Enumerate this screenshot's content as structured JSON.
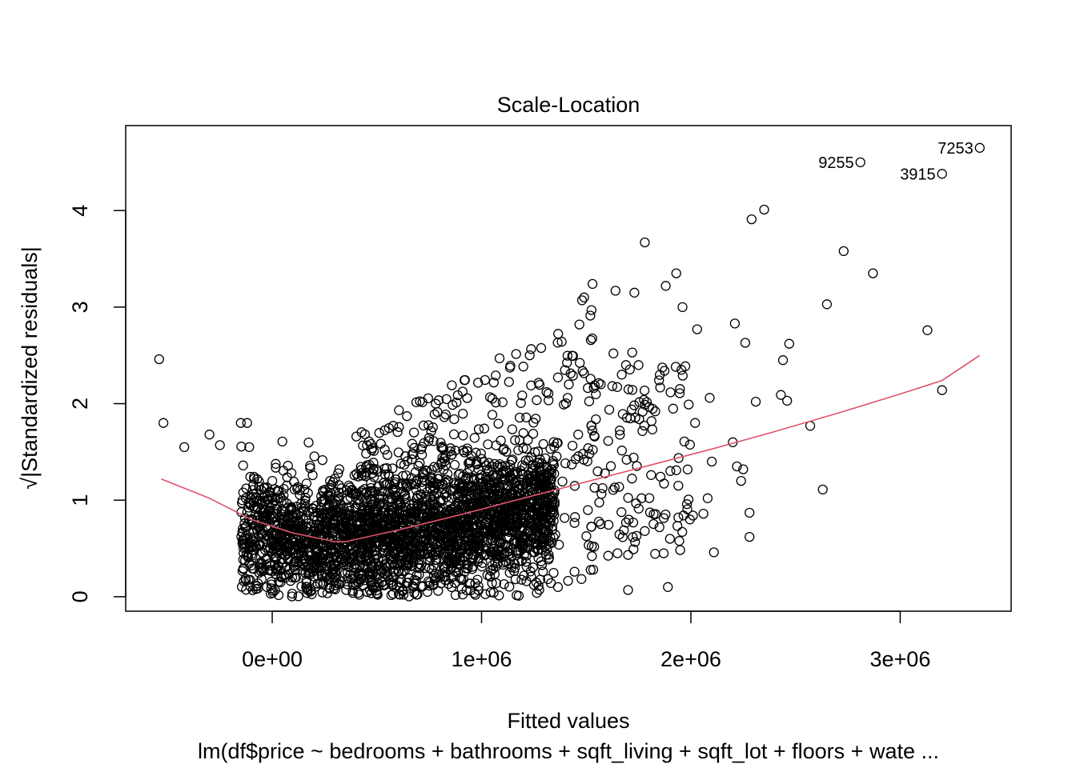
{
  "chart_data": {
    "type": "scatter",
    "title": "Scale-Location",
    "xlabel": "Fitted values",
    "ylabel": "√|Standardized residuals|",
    "subtitle": "lm(df$price ~ bedrooms + bathrooms + sqft_living + sqft_lot + floors + wate ...",
    "xlim": [
      -700000,
      3530000
    ],
    "ylim": [
      -0.15,
      4.88
    ],
    "x_ticks": [
      {
        "value": 0,
        "label": "0e+00"
      },
      {
        "value": 1000000,
        "label": "1e+06"
      },
      {
        "value": 2000000,
        "label": "2e+06"
      },
      {
        "value": 3000000,
        "label": "3e+06"
      }
    ],
    "y_ticks": [
      {
        "value": 0,
        "label": "0"
      },
      {
        "value": 1,
        "label": "1"
      },
      {
        "value": 2,
        "label": "2"
      },
      {
        "value": 3,
        "label": "3"
      },
      {
        "value": 4,
        "label": "4"
      }
    ],
    "grid": false,
    "point_color": "#000000",
    "smooth_color": "#DF536B",
    "labeled_points": [
      {
        "label": "7253",
        "x": 3380000,
        "y": 4.65
      },
      {
        "label": "9255",
        "x": 2810000,
        "y": 4.5
      },
      {
        "label": "3915",
        "x": 3200000,
        "y": 4.38
      }
    ],
    "notable_points": [
      [
        -540000,
        2.46
      ],
      [
        -520000,
        1.8
      ],
      [
        -420000,
        1.55
      ],
      [
        -300000,
        1.68
      ],
      [
        -250000,
        1.57
      ],
      [
        -150000,
        1.8
      ],
      [
        -120000,
        1.8
      ],
      [
        -110000,
        1.55
      ],
      [
        2350000,
        4.01
      ],
      [
        2290000,
        3.91
      ],
      [
        1780000,
        3.67
      ],
      [
        2730000,
        3.58
      ],
      [
        2870000,
        3.35
      ],
      [
        1930000,
        3.35
      ],
      [
        1880000,
        3.22
      ],
      [
        1530000,
        3.24
      ],
      [
        2650000,
        3.03
      ],
      [
        1960000,
        3.0
      ],
      [
        3130000,
        2.76
      ],
      [
        3200000,
        2.14
      ],
      [
        2030000,
        2.77
      ],
      [
        2210000,
        2.83
      ],
      [
        2470000,
        2.62
      ],
      [
        2440000,
        2.45
      ],
      [
        2260000,
        2.63
      ],
      [
        2430000,
        2.09
      ],
      [
        2460000,
        2.03
      ],
      [
        2310000,
        2.02
      ],
      [
        2570000,
        1.77
      ],
      [
        2630000,
        1.11
      ],
      [
        2280000,
        0.87
      ],
      [
        2280000,
        0.62
      ],
      [
        2110000,
        0.46
      ],
      [
        1890000,
        0.1
      ],
      [
        1700000,
        0.07
      ],
      [
        2080000,
        1.02
      ],
      [
        2100000,
        1.4
      ],
      [
        1930000,
        1.31
      ],
      [
        1810000,
        1.26
      ],
      [
        1940000,
        1.15
      ],
      [
        2060000,
        0.86
      ],
      [
        2010000,
        0.84
      ],
      [
        1940000,
        0.82
      ],
      [
        1900000,
        0.6
      ],
      [
        1870000,
        0.45
      ],
      [
        1780000,
        0.68
      ],
      [
        1850000,
        0.72
      ],
      [
        2220000,
        1.35
      ],
      [
        2250000,
        1.32
      ],
      [
        2240000,
        1.2
      ],
      [
        2200000,
        1.6
      ],
      [
        2020000,
        1.8
      ],
      [
        2090000,
        2.06
      ],
      [
        1830000,
        1.92
      ],
      [
        1780000,
        1.99
      ],
      [
        1690000,
        2.4
      ],
      [
        1750000,
        2.4
      ],
      [
        1640000,
        3.17
      ],
      [
        1730000,
        3.15
      ],
      [
        1480000,
        3.07
      ],
      [
        1490000,
        3.1
      ],
      [
        1720000,
        2.53
      ],
      [
        1630000,
        2.52
      ]
    ],
    "dense_band": {
      "description": "dense cloud of ~21000 observations",
      "x_range": [
        -150000,
        1550000
      ],
      "y_range": [
        0.0,
        1.6
      ]
    },
    "smooth_line": {
      "x": [
        -530000,
        -300000,
        -100000,
        100000,
        300000,
        350000,
        600000,
        900000,
        1200000,
        1500000,
        1800000,
        2100000,
        2400000,
        2700000,
        3000000,
        3200000,
        3380000
      ],
      "y": [
        1.22,
        1.02,
        0.8,
        0.66,
        0.57,
        0.57,
        0.69,
        0.85,
        1.02,
        1.19,
        1.36,
        1.53,
        1.71,
        1.9,
        2.1,
        2.24,
        2.5
      ]
    }
  }
}
